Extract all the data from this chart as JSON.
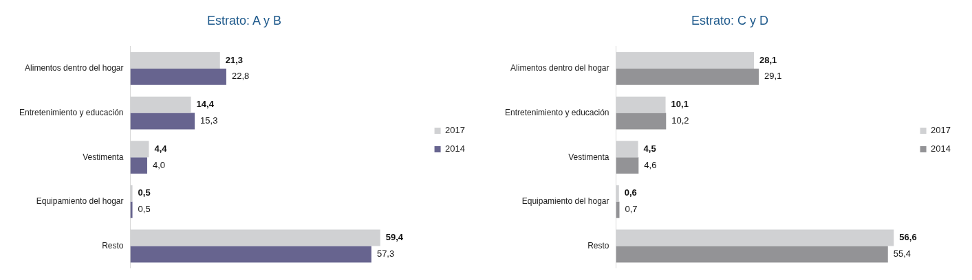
{
  "chart_data": [
    {
      "type": "bar",
      "title": "Estrato: A y B",
      "orientation": "horizontal",
      "categories": [
        "Alimentos dentro del hogar",
        "Entretenimiento y educación",
        "Vestimenta",
        "Equipamiento del hogar",
        "Resto"
      ],
      "series": [
        {
          "name": "2017",
          "color": "#d0d1d3",
          "values": [
            21.3,
            14.4,
            4.4,
            0.5,
            59.4
          ],
          "value_labels": [
            "21,3",
            "14,4",
            "4,4",
            "0,5",
            "59,4"
          ]
        },
        {
          "name": "2014",
          "color": "#67648f",
          "values": [
            22.8,
            15.3,
            4.0,
            0.5,
            57.3
          ],
          "value_labels": [
            "22,8",
            "15,3",
            "4,0",
            "0,5",
            "57,3"
          ]
        }
      ],
      "tick_labels": "y",
      "legend": "right",
      "grid": false
    },
    {
      "type": "bar",
      "title": "Estrato: C y D",
      "orientation": "horizontal",
      "categories": [
        "Alimentos dentro del hogar",
        "Entretenimiento y educación",
        "Vestimenta",
        "Equipamiento del hogar",
        "Resto"
      ],
      "series": [
        {
          "name": "2017",
          "color": "#d0d1d3",
          "values": [
            28.1,
            10.1,
            4.5,
            0.6,
            56.6
          ],
          "value_labels": [
            "28,1",
            "10,1",
            "4,5",
            "0,6",
            "56,6"
          ]
        },
        {
          "name": "2014",
          "color": "#939396",
          "values": [
            29.1,
            10.2,
            4.6,
            0.7,
            55.4
          ],
          "value_labels": [
            "29,1",
            "10,2",
            "4,6",
            "0,7",
            "55,4"
          ]
        }
      ],
      "tick_labels": "y",
      "legend": "right",
      "grid": false
    }
  ]
}
